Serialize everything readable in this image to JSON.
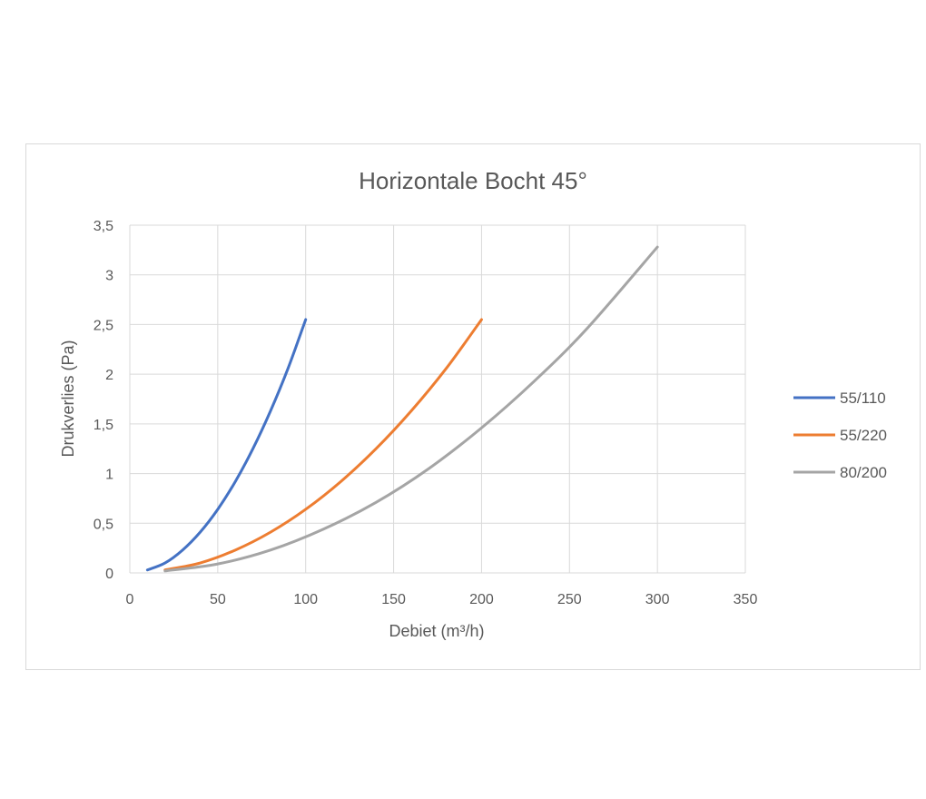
{
  "chart_data": {
    "type": "line",
    "title": "Horizontale Bocht 45°",
    "xlabel": "Debiet (m³/h)",
    "ylabel": "Drukverlies (Pa)",
    "xlim": [
      0,
      350
    ],
    "ylim": [
      0,
      3.5
    ],
    "x_ticks": [
      0,
      50,
      100,
      150,
      200,
      250,
      300,
      350
    ],
    "y_ticks": [
      0,
      0.5,
      1,
      1.5,
      2,
      2.5,
      3,
      3.5
    ],
    "x_tick_labels": [
      "0",
      "50",
      "100",
      "150",
      "200",
      "250",
      "300",
      "350"
    ],
    "y_tick_labels": [
      "0",
      "0,5",
      "1",
      "1,5",
      "2",
      "2,5",
      "3",
      "3,5"
    ],
    "grid": true,
    "legend_position": "right",
    "series": [
      {
        "name": "55/110",
        "color": "#4472c4",
        "x": [
          10,
          20,
          30,
          40,
          50,
          60,
          70,
          80,
          90,
          100
        ],
        "y": [
          0.03,
          0.1,
          0.23,
          0.41,
          0.64,
          0.92,
          1.25,
          1.63,
          2.06,
          2.55
        ]
      },
      {
        "name": "55/220",
        "color": "#ed7d31",
        "x": [
          20,
          40,
          60,
          80,
          100,
          120,
          140,
          160,
          180,
          200
        ],
        "y": [
          0.03,
          0.1,
          0.23,
          0.41,
          0.64,
          0.92,
          1.25,
          1.63,
          2.06,
          2.55
        ]
      },
      {
        "name": "80/200",
        "color": "#a5a5a5",
        "x": [
          20,
          50,
          80,
          110,
          140,
          170,
          200,
          230,
          260,
          300
        ],
        "y": [
          0.02,
          0.09,
          0.23,
          0.44,
          0.71,
          1.05,
          1.46,
          1.93,
          2.46,
          3.28
        ]
      }
    ]
  }
}
